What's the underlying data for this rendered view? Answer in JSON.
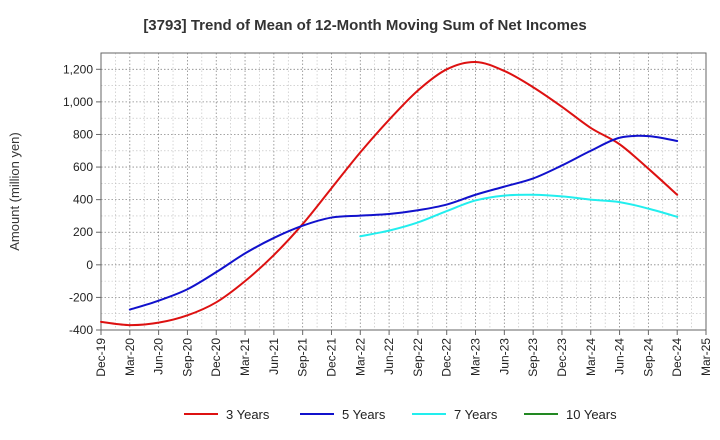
{
  "chart_data": {
    "type": "line",
    "title": "[3793]  Trend of Mean of 12-Month Moving Sum of Net Incomes",
    "xlabel": "",
    "ylabel": "Amount (million yen)",
    "ylim": [
      -400,
      1300
    ],
    "yticks": [
      -400,
      -200,
      0,
      200,
      400,
      600,
      800,
      1000,
      1200
    ],
    "ytick_labels": [
      "-400",
      "-200",
      "0",
      "200",
      "400",
      "600",
      "800",
      "1,000",
      "1,200"
    ],
    "x_categories": [
      "Dec-19",
      "Mar-20",
      "Jun-20",
      "Sep-20",
      "Dec-20",
      "Mar-21",
      "Jun-21",
      "Sep-21",
      "Dec-21",
      "Mar-22",
      "Jun-22",
      "Sep-22",
      "Dec-22",
      "Mar-23",
      "Jun-23",
      "Sep-23",
      "Dec-23",
      "Mar-24",
      "Jun-24",
      "Sep-24",
      "Dec-24",
      "Mar-25"
    ],
    "grid": true,
    "legend_position": "bottom",
    "series": [
      {
        "name": "3 Years",
        "color": "#dd1111",
        "x": [
          "Dec-19",
          "Mar-20",
          "Jun-20",
          "Sep-20",
          "Dec-20",
          "Mar-21",
          "Jun-21",
          "Sep-21",
          "Dec-21",
          "Mar-22",
          "Jun-22",
          "Sep-22",
          "Dec-22",
          "Mar-23",
          "Jun-23",
          "Sep-23",
          "Dec-23",
          "Mar-24",
          "Jun-24",
          "Sep-24",
          "Dec-24"
        ],
        "values": [
          -350,
          -370,
          -355,
          -310,
          -230,
          -100,
          60,
          250,
          470,
          690,
          890,
          1070,
          1200,
          1245,
          1190,
          1090,
          970,
          840,
          740,
          590,
          430
        ]
      },
      {
        "name": "5 Years",
        "color": "#1111cc",
        "x": [
          "Mar-20",
          "Jun-20",
          "Sep-20",
          "Dec-20",
          "Mar-21",
          "Jun-21",
          "Sep-21",
          "Dec-21",
          "Mar-22",
          "Jun-22",
          "Sep-22",
          "Dec-22",
          "Mar-23",
          "Jun-23",
          "Sep-23",
          "Dec-23",
          "Mar-24",
          "Jun-24",
          "Sep-24",
          "Dec-24"
        ],
        "values": [
          -275,
          -220,
          -150,
          -45,
          70,
          165,
          240,
          290,
          302,
          312,
          335,
          370,
          430,
          480,
          530,
          610,
          700,
          780,
          790,
          760
        ]
      },
      {
        "name": "7 Years",
        "color": "#22eeee",
        "x": [
          "Mar-22",
          "Jun-22",
          "Sep-22",
          "Dec-22",
          "Mar-23",
          "Jun-23",
          "Sep-23",
          "Dec-23",
          "Mar-24",
          "Jun-24",
          "Sep-24",
          "Dec-24"
        ],
        "values": [
          175,
          210,
          260,
          330,
          395,
          425,
          430,
          420,
          400,
          385,
          345,
          295
        ]
      },
      {
        "name": "10 Years",
        "color": "#228822",
        "x": [],
        "values": []
      }
    ]
  }
}
